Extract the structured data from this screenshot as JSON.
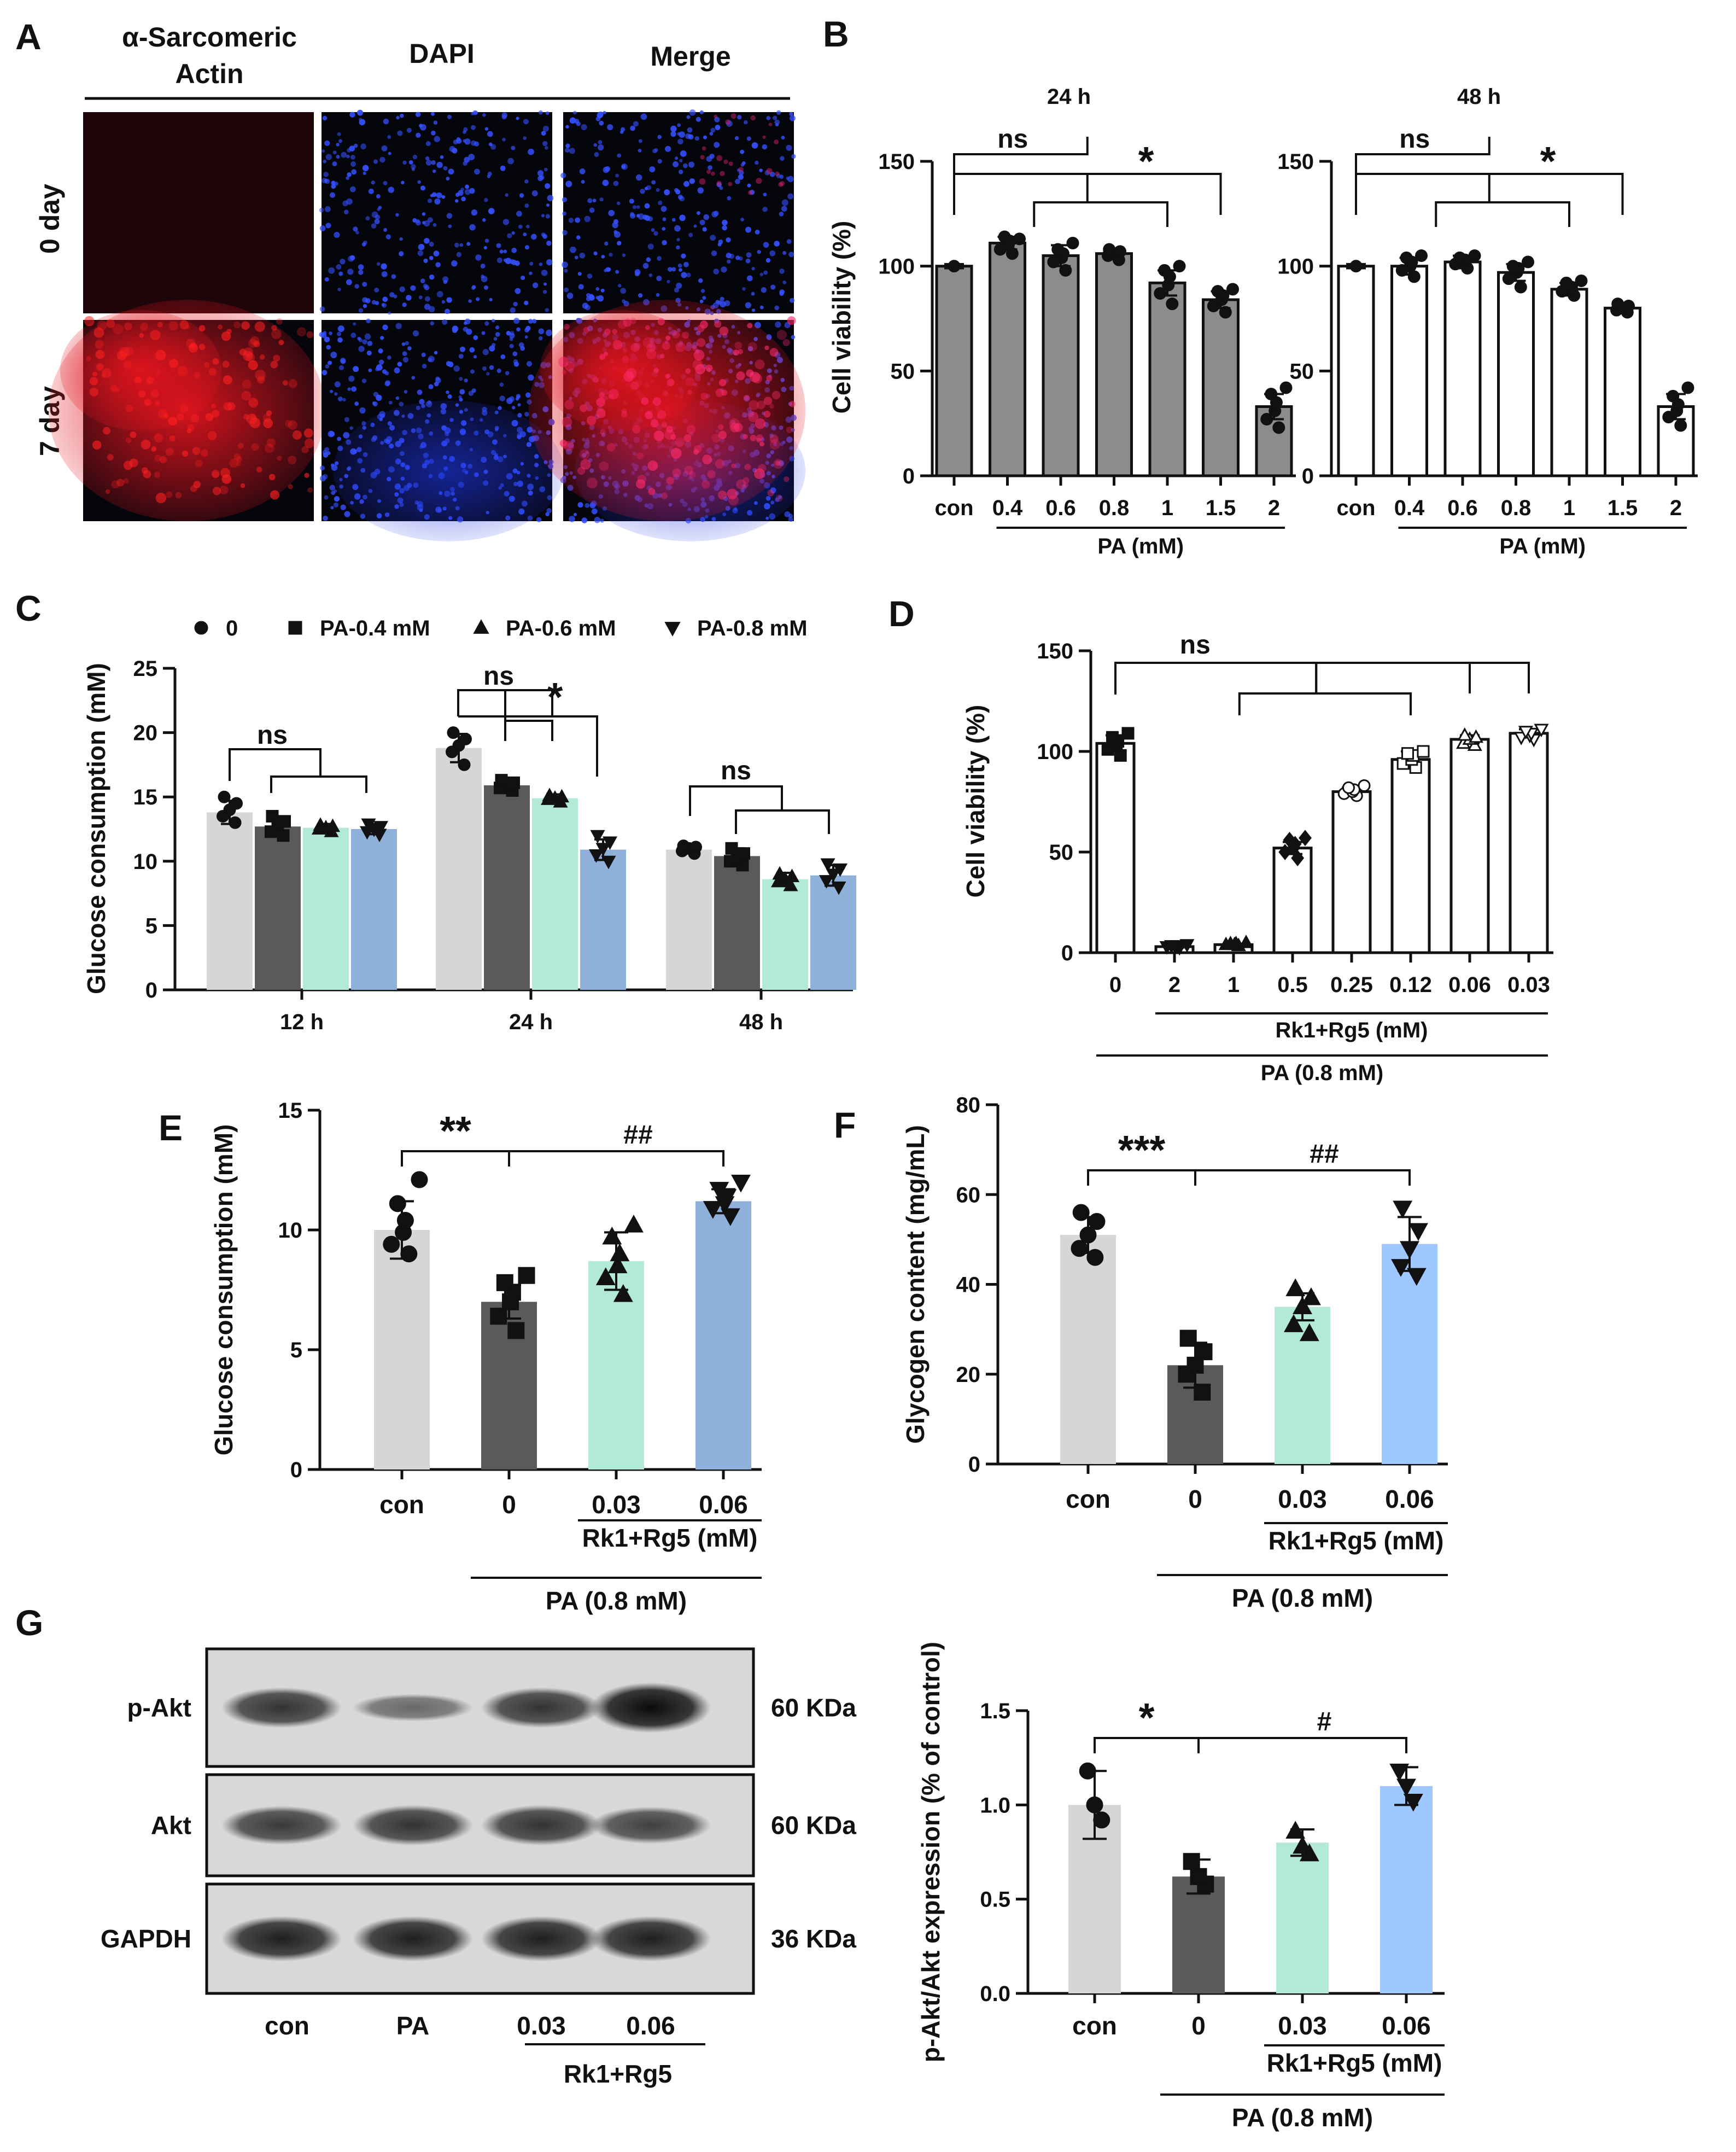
{
  "panels": {
    "A": {
      "letter": "A",
      "columns": [
        "α-Sarcomeric Actin",
        "DAPI",
        "Merge"
      ],
      "rows": [
        "0 day",
        "7 day"
      ],
      "colors": {
        "actin": "#e0141e",
        "dapi": "#1e36e6",
        "background": "#05050c"
      }
    },
    "B": {
      "letter": "B",
      "group_label": "PA  (mM)",
      "chart_data": [
        {
          "type": "bar",
          "title": "24 h",
          "ylabel": "Cell viability (%)",
          "categories": [
            "con",
            "0.4",
            "0.6",
            "0.8",
            "1",
            "1.5",
            "2"
          ],
          "values": [
            100,
            111,
            105,
            106,
            92,
            84,
            33
          ],
          "sd": [
            1,
            3,
            5,
            2,
            6,
            4,
            6
          ],
          "points": [
            [
              100
            ],
            [
              106,
              108,
              110,
              112,
              114,
              113
            ],
            [
              98,
              102,
              104,
              106,
              108,
              111
            ],
            [
              103,
              105,
              106,
              107,
              108
            ],
            [
              82,
              87,
              91,
              95,
              98,
              100
            ],
            [
              78,
              81,
              84,
              86,
              88,
              89
            ],
            [
              23,
              27,
              31,
              35,
              39,
              42
            ]
          ],
          "ylim": [
            0,
            150
          ],
          "yticks": [
            0,
            50,
            100,
            150
          ],
          "bar_color": "#8c8c8c",
          "annotations": [
            "ns",
            "*"
          ]
        },
        {
          "type": "bar",
          "title": "48 h",
          "ylabel": "",
          "categories": [
            "con",
            "0.4",
            "0.6",
            "0.8",
            "1",
            "1.5",
            "2"
          ],
          "values": [
            100,
            100,
            102,
            97,
            89,
            80,
            33
          ],
          "sd": [
            1,
            4,
            3,
            4,
            3,
            2,
            6
          ],
          "points": [
            [
              100
            ],
            [
              95,
              98,
              100,
              102,
              104,
              105
            ],
            [
              99,
              101,
              102,
              103,
              104,
              105
            ],
            [
              90,
              94,
              97,
              99,
              100,
              102
            ],
            [
              86,
              88,
              89,
              90,
              92,
              93
            ],
            [
              78,
              79,
              80,
              81,
              82
            ],
            [
              24,
              28,
              31,
              34,
              38,
              42
            ]
          ],
          "ylim": [
            0,
            150
          ],
          "yticks": [
            0,
            50,
            100,
            150
          ],
          "bar_color": "#ffffff",
          "annotations": [
            "ns",
            "*"
          ]
        }
      ]
    },
    "C": {
      "letter": "C",
      "chart_data": {
        "type": "bar",
        "ylabel": "Glucose consumption (mM)",
        "categories": [
          "12 h",
          "24 h",
          "48 h"
        ],
        "ylim": [
          0,
          25
        ],
        "yticks": [
          0,
          5,
          10,
          15,
          20,
          25
        ],
        "series": [
          {
            "name": "0",
            "color": "#d6d6d6",
            "marker": "circle",
            "values": [
              13.8,
              18.8,
              10.9
            ],
            "sd": [
              0.9,
              1.1,
              0.3
            ],
            "points": [
              [
                13,
                13.5,
                14,
                14.5,
                15
              ],
              [
                17.5,
                18.5,
                19,
                19.5,
                20
              ],
              [
                10.6,
                10.8,
                11,
                11.1,
                11.2
              ]
            ]
          },
          {
            "name": "PA-0.4 mM",
            "color": "#5a5a5a",
            "marker": "square",
            "values": [
              12.7,
              15.9,
              10.4
            ],
            "sd": [
              0.7,
              0.4,
              0.6
            ],
            "points": [
              [
                12,
                12.3,
                12.7,
                13.1,
                13.5
              ],
              [
                15.5,
                15.7,
                15.9,
                16.1,
                16.3
              ],
              [
                9.7,
                10,
                10.3,
                10.6,
                11
              ]
            ]
          },
          {
            "name": "PA-0.6 mM",
            "color": "#b3ead6",
            "marker": "triangle",
            "values": [
              12.6,
              14.9,
              8.6
            ],
            "sd": [
              0.3,
              0.3,
              0.5
            ],
            "points": [
              [
                12.3,
                12.5,
                12.6,
                12.7,
                12.8
              ],
              [
                14.6,
                14.8,
                14.9,
                15,
                15.1
              ],
              [
                8.1,
                8.4,
                8.6,
                8.8,
                9
              ]
            ]
          },
          {
            "name": "PA-0.8 mM",
            "color": "#8fb0d8",
            "marker": "triangle-down",
            "values": [
              12.5,
              10.9,
              8.9
            ],
            "sd": [
              0.4,
              0.8,
              0.8
            ],
            "points": [
              [
                12.1,
                12.3,
                12.5,
                12.7,
                12.9
              ],
              [
                10,
                10.5,
                11,
                11.5,
                12
              ],
              [
                8,
                8.5,
                9,
                9.4,
                9.8
              ]
            ]
          }
        ],
        "annotations": [
          "ns",
          "ns",
          "*",
          "ns"
        ]
      }
    },
    "D": {
      "letter": "D",
      "group_label_inner": "Rk1+Rg5 (mM)",
      "group_label_outer": "PA (0.8 mM)",
      "chart_data": {
        "type": "bar",
        "ylabel": "Cell viability (%)",
        "categories": [
          "0",
          "2",
          "1",
          "0.5",
          "0.25",
          "0.12",
          "0.06",
          "0.03"
        ],
        "values": [
          104,
          3,
          4,
          52,
          80,
          96,
          106,
          109
        ],
        "sd": [
          4,
          0.5,
          0.5,
          3,
          2,
          4,
          2,
          2
        ],
        "markers": [
          "square",
          "triangle-down",
          "triangle",
          "diamond",
          "circle-open",
          "square-open",
          "triangle-open",
          "triangle-down-open"
        ],
        "points": [
          [
            98,
            101,
            103,
            105,
            107,
            109
          ],
          [
            2.5,
            3,
            3,
            3.5,
            3.5,
            4
          ],
          [
            3.5,
            4,
            4,
            4.5,
            4.5,
            5
          ],
          [
            47,
            50,
            52,
            54,
            56,
            57
          ],
          [
            78,
            79,
            80,
            81,
            82,
            83
          ],
          [
            92,
            94,
            96,
            98,
            99,
            100
          ],
          [
            103,
            104,
            106,
            107,
            108
          ],
          [
            106,
            107,
            108,
            109,
            110,
            111
          ]
        ],
        "ylim": [
          0,
          150
        ],
        "yticks": [
          0,
          50,
          100,
          150
        ],
        "bar_color": "#ffffff",
        "annotations": [
          "ns"
        ]
      }
    },
    "E": {
      "letter": "E",
      "group_label_inner": "Rk1+Rg5 (mM)",
      "group_label_outer": "PA (0.8 mM)",
      "chart_data": {
        "type": "bar",
        "ylabel": "Glucose consumption (mM)",
        "categories": [
          "con",
          "0",
          "0.03",
          "0.06"
        ],
        "values": [
          10,
          7,
          8.7,
          11.2
        ],
        "sd": [
          1.2,
          0.7,
          1.2,
          0.5
        ],
        "colors": [
          "#d6d6d6",
          "#5a5a5a",
          "#b3ead6",
          "#8fb0d8"
        ],
        "markers": [
          "circle",
          "square",
          "triangle",
          "triangle-down"
        ],
        "points": [
          [
            9,
            9.4,
            9.9,
            10.4,
            11.1,
            12.1
          ],
          [
            5.8,
            6.4,
            7,
            7.4,
            7.8,
            8.1
          ],
          [
            7.3,
            8,
            8.5,
            9,
            9.7,
            10.2
          ],
          [
            10.6,
            10.9,
            11.1,
            11.4,
            11.7,
            12
          ]
        ],
        "ylim": [
          0,
          15
        ],
        "yticks": [
          0,
          5,
          10,
          15
        ],
        "annotations": [
          "**",
          "##"
        ]
      }
    },
    "F": {
      "letter": "F",
      "group_label_inner": "Rk1+Rg5 (mM)",
      "group_label_outer": "PA (0.8 mM)",
      "chart_data": {
        "type": "bar",
        "ylabel": "Glycogen content (mg/mL)",
        "categories": [
          "con",
          "0",
          "0.03",
          "0.06"
        ],
        "values": [
          51,
          22,
          35,
          49
        ],
        "sd": [
          4,
          5,
          3,
          6
        ],
        "colors": [
          "#d6d6d6",
          "#5a5a5a",
          "#b3ead6",
          "#9ec8ff"
        ],
        "markers": [
          "circle",
          "square",
          "triangle",
          "triangle-down"
        ],
        "points": [
          [
            46,
            48,
            51,
            54,
            56
          ],
          [
            16,
            20,
            22,
            25,
            28
          ],
          [
            29,
            31,
            35,
            37,
            39
          ],
          [
            42,
            44,
            48,
            52,
            57
          ]
        ],
        "ylim": [
          0,
          80
        ],
        "yticks": [
          0,
          20,
          40,
          60,
          80
        ],
        "annotations": [
          "***",
          "##"
        ]
      }
    },
    "G": {
      "letter": "G",
      "blot": {
        "rows": [
          {
            "label": "p-Akt",
            "size": "60 KDa",
            "intensity": [
              0.7,
              0.3,
              0.7,
              1.0
            ]
          },
          {
            "label": "Akt",
            "size": "60 KDa",
            "intensity": [
              0.65,
              0.7,
              0.7,
              0.6
            ]
          },
          {
            "label": "GAPDH",
            "size": "36 KDa",
            "intensity": [
              0.85,
              0.85,
              0.85,
              0.85
            ]
          }
        ],
        "lanes": [
          "con",
          "PA",
          "0.03",
          "0.06"
        ],
        "lane_group": "Rk1+Rg5"
      },
      "group_label_inner": "Rk1+Rg5 (mM)",
      "group_label_outer": "PA (0.8 mM)",
      "chart_data": {
        "type": "bar",
        "ylabel": "p-Akt/Akt expression (% of control)",
        "categories": [
          "con",
          "0",
          "0.03",
          "0.06"
        ],
        "values": [
          1.0,
          0.62,
          0.8,
          1.1
        ],
        "sd": [
          0.18,
          0.09,
          0.07,
          0.1
        ],
        "colors": [
          "#d6d6d6",
          "#5a5a5a",
          "#b3ead6",
          "#9ec8ff"
        ],
        "markers": [
          "circle",
          "square",
          "triangle",
          "triangle-down"
        ],
        "points": [
          [
            0.92,
            1.0,
            1.18
          ],
          [
            0.58,
            0.62,
            0.7
          ],
          [
            0.74,
            0.78,
            0.86
          ],
          [
            1.02,
            1.1,
            1.18
          ]
        ],
        "ylim": [
          0,
          1.5
        ],
        "yticks": [
          "0.0",
          "0.5",
          "1.0",
          "1.5"
        ],
        "annotations": [
          "*",
          "#"
        ]
      }
    }
  }
}
